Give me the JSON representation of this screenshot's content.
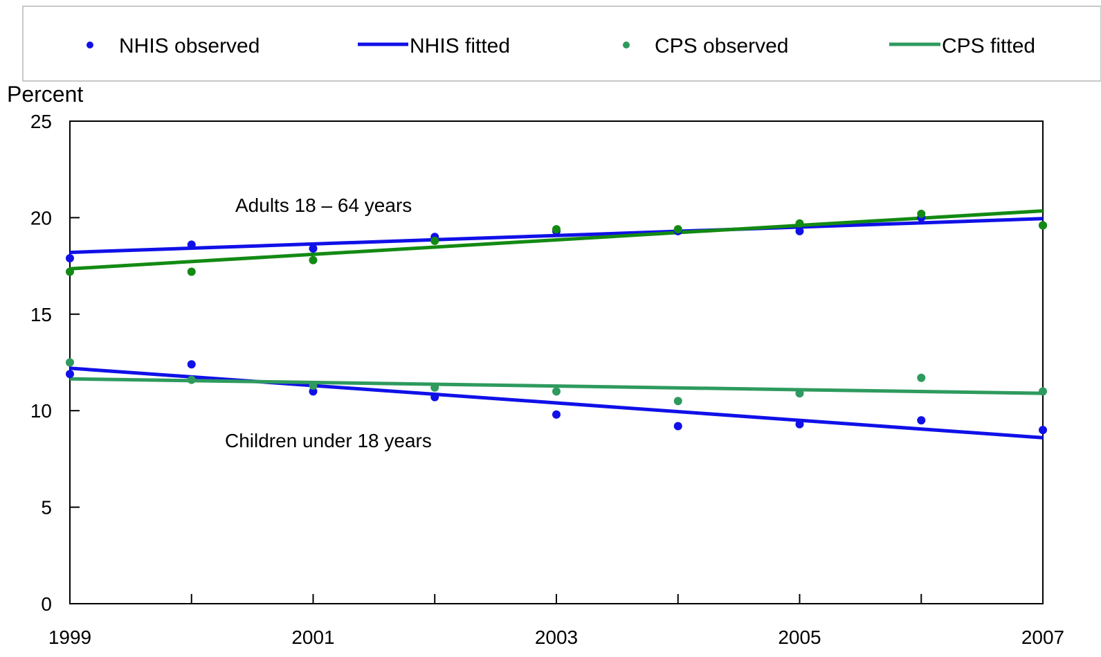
{
  "legend": {
    "items": [
      {
        "label": "NHIS observed",
        "kind": "marker",
        "color": "#1010e8"
      },
      {
        "label": "NHIS fitted",
        "kind": "line",
        "color": "#1010e8"
      },
      {
        "label": "CPS observed",
        "kind": "marker",
        "color": "#2e9a5e"
      },
      {
        "label": "CPS fitted",
        "kind": "line",
        "color": "#2e9a5e"
      }
    ]
  },
  "annotations": {
    "adults": "Adults 18 – 64 years",
    "children": "Children under 18 years"
  },
  "chart_data": {
    "type": "scatter",
    "ylabel": "Percent",
    "xlabel": "",
    "xlim": [
      1999,
      2007
    ],
    "ylim": [
      0,
      25
    ],
    "x_ticks": [
      1999,
      2000,
      2001,
      2002,
      2003,
      2004,
      2005,
      2006,
      2007
    ],
    "x_tick_labels": [
      "1999",
      "2001",
      "2003",
      "2005",
      "2007"
    ],
    "x_tick_label_values": [
      1999,
      2001,
      2003,
      2005,
      2007
    ],
    "y_ticks": [
      0,
      5,
      10,
      15,
      20,
      25
    ],
    "y_tick_labels": [
      "0",
      "5",
      "10",
      "15",
      "20",
      "25"
    ],
    "grid": false,
    "legend_position": "top",
    "x": [
      1999,
      2000,
      2001,
      2002,
      2003,
      2004,
      2005,
      2006,
      2007
    ],
    "groups": [
      {
        "group": "adults",
        "nhis_observed": [
          17.9,
          18.6,
          18.4,
          19.0,
          19.3,
          19.3,
          19.3,
          20.0,
          19.6
        ],
        "nhis_fitted": [
          18.2,
          19.95
        ],
        "cps_observed": [
          17.2,
          17.2,
          17.8,
          18.8,
          19.4,
          19.4,
          19.7,
          20.2,
          19.6
        ],
        "cps_fitted": [
          17.35,
          20.35
        ]
      },
      {
        "group": "children",
        "nhis_observed": [
          11.9,
          12.4,
          11.0,
          10.7,
          9.8,
          9.2,
          9.3,
          9.5,
          9.0
        ],
        "nhis_fitted": [
          12.2,
          8.6
        ],
        "cps_observed": [
          12.5,
          11.6,
          11.3,
          11.2,
          11.0,
          10.5,
          10.9,
          11.7,
          11.0
        ],
        "cps_fitted": [
          11.65,
          10.9
        ]
      }
    ],
    "colors": {
      "nhis": "#1010e8",
      "cps_adults": "#138a13",
      "cps_children": "#2e9a5e"
    }
  }
}
